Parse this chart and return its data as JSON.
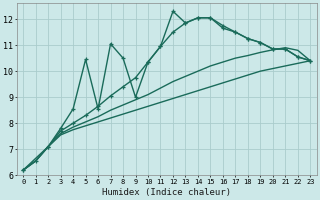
{
  "xlabel": "Humidex (Indice chaleur)",
  "bg_color": "#cce8e8",
  "grid_color": "#aacccc",
  "line_color": "#1a6b5a",
  "xlim": [
    -0.5,
    23.5
  ],
  "ylim": [
    6,
    12.6
  ],
  "xticks": [
    0,
    1,
    2,
    3,
    4,
    5,
    6,
    7,
    8,
    9,
    10,
    11,
    12,
    13,
    14,
    15,
    16,
    17,
    18,
    19,
    20,
    21,
    22,
    23
  ],
  "yticks": [
    6,
    7,
    8,
    9,
    10,
    11,
    12
  ],
  "series": [
    {
      "x": [
        0,
        1,
        2,
        3,
        4,
        5,
        6,
        7,
        8,
        9,
        10,
        11,
        12,
        13,
        14,
        15,
        16,
        17,
        18,
        19,
        20,
        21,
        22,
        23
      ],
      "y": [
        6.2,
        6.55,
        7.1,
        7.55,
        7.75,
        7.9,
        8.05,
        8.2,
        8.35,
        8.5,
        8.65,
        8.8,
        8.95,
        9.1,
        9.25,
        9.4,
        9.55,
        9.7,
        9.85,
        10.0,
        10.1,
        10.2,
        10.3,
        10.4
      ],
      "marker": false,
      "linewidth": 1.0
    },
    {
      "x": [
        0,
        1,
        2,
        3,
        4,
        5,
        6,
        7,
        8,
        9,
        10,
        11,
        12,
        13,
        14,
        15,
        16,
        17,
        18,
        19,
        20,
        21,
        22,
        23
      ],
      "y": [
        6.2,
        6.55,
        7.1,
        7.6,
        7.85,
        8.05,
        8.25,
        8.5,
        8.7,
        8.9,
        9.1,
        9.35,
        9.6,
        9.8,
        10.0,
        10.2,
        10.35,
        10.5,
        10.6,
        10.72,
        10.82,
        10.9,
        10.8,
        10.4
      ],
      "marker": false,
      "linewidth": 1.0
    },
    {
      "x": [
        0,
        1,
        2,
        3,
        4,
        5,
        6,
        7,
        8,
        9,
        10,
        11,
        12,
        13,
        14,
        15,
        16,
        17,
        18,
        19,
        20,
        21,
        22,
        23
      ],
      "y": [
        6.2,
        6.55,
        7.1,
        7.7,
        8.0,
        8.3,
        8.65,
        9.05,
        9.4,
        9.75,
        10.35,
        10.95,
        11.5,
        11.85,
        12.05,
        12.05,
        11.75,
        11.5,
        11.25,
        11.1,
        10.85,
        10.85,
        10.55,
        10.4
      ],
      "marker": true,
      "linewidth": 1.0
    },
    {
      "x": [
        0,
        2,
        3,
        4,
        5,
        6,
        7,
        8,
        9,
        10,
        11,
        12,
        13,
        14,
        15,
        16,
        17,
        18,
        19,
        20,
        21,
        22,
        23
      ],
      "y": [
        6.2,
        7.1,
        7.8,
        8.55,
        10.45,
        8.55,
        11.05,
        10.5,
        9.0,
        10.35,
        10.95,
        12.3,
        11.85,
        12.05,
        12.05,
        11.65,
        11.5,
        11.25,
        11.1,
        10.85,
        10.85,
        10.55,
        10.4
      ],
      "marker": true,
      "linewidth": 1.0
    }
  ]
}
